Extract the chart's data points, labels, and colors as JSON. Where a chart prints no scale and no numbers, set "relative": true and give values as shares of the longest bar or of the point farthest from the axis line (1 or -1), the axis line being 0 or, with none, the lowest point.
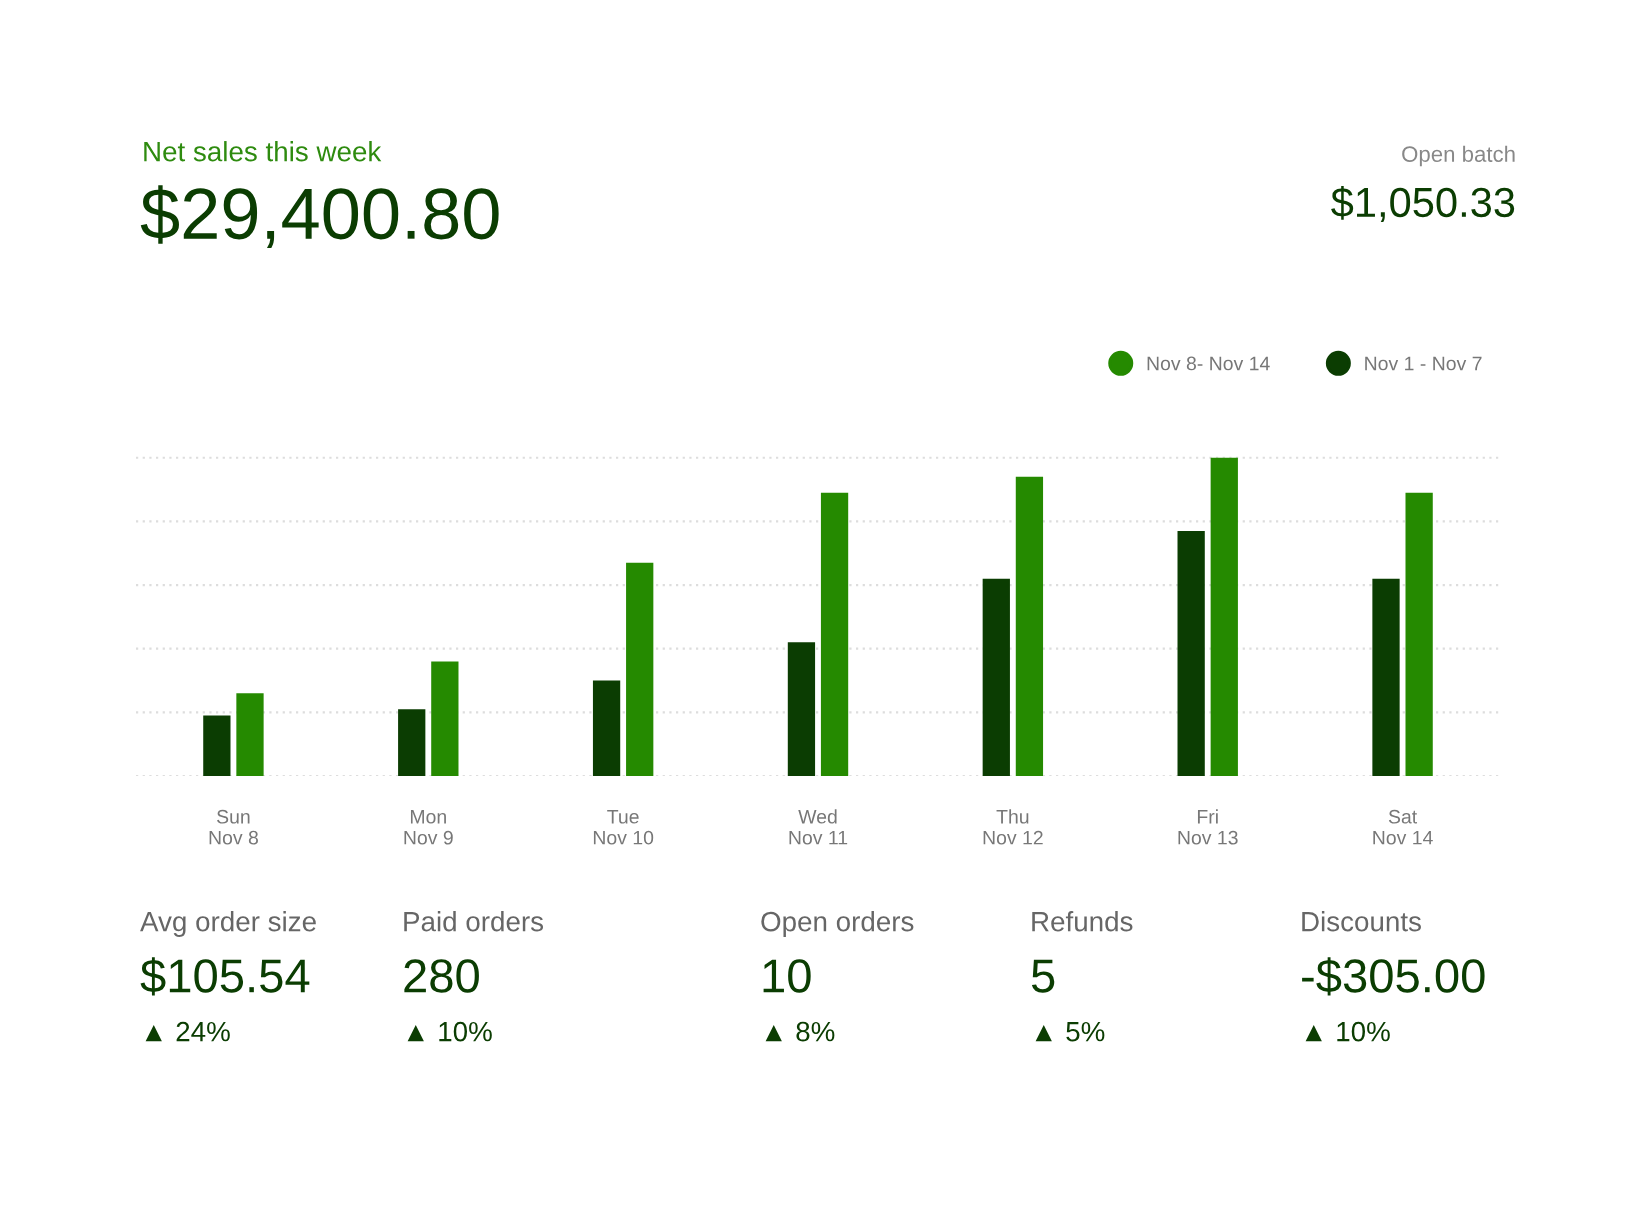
{
  "chart_data": [
    {
      "type": "bar",
      "title": "Net sales this week",
      "subtitle": "$29,400.80",
      "annotations": [
        "Open batch",
        "$1,050.33"
      ],
      "relative": true,
      "grid": "y",
      "legend": "top right",
      "categories": [
        "Sun\nNov 8",
        "Mon\nNov 9",
        "Tue\nNov 10",
        "Wed\nNov 11",
        "Thu\nNov 12",
        "Fri\nNov 13",
        "Sat\nNov 14"
      ],
      "series": [
        {
          "name": "Nov 1 - Nov 7",
          "color": "#0b3d02",
          "values": [
            0.19,
            0.21,
            0.3,
            0.42,
            0.62,
            0.77,
            0.62
          ]
        },
        {
          "name": "Nov 8- Nov 14",
          "color": "#258a00",
          "values": [
            0.26,
            0.36,
            0.67,
            0.89,
            0.94,
            1.0,
            0.89
          ]
        }
      ]
    },
    {
      "type": "other",
      "annotations": [
        "Avg order size",
        "$105.54",
        "▲ 24%",
        "Paid orders",
        "280",
        "▲ 10%",
        "Open orders",
        "10",
        "▲ 8%",
        "Refunds",
        "5",
        "▲ 5%",
        "Discounts",
        "-$305.00",
        "▲ 10%"
      ]
    }
  ]
}
